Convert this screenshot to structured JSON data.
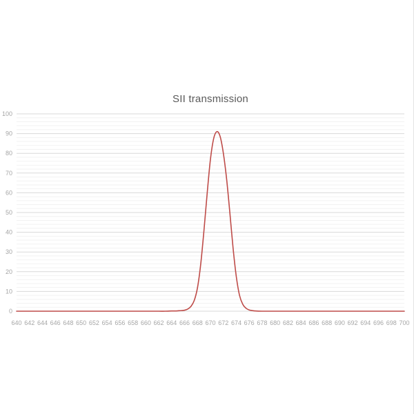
{
  "chart_data": {
    "type": "line",
    "title": "SII transmission",
    "xlabel": "",
    "ylabel": "",
    "legend": "none",
    "grid": "on",
    "xlim": [
      640,
      700
    ],
    "ylim": [
      0,
      100
    ],
    "x_tick_step": 2,
    "y_major_step": 10,
    "y_minor_step": 2,
    "colors": {
      "line": "#be4b48",
      "major_grid": "#d9d9d9",
      "minor_grid": "#f2f2f2",
      "tick_label": "#a6a6a6",
      "title": "#595959",
      "background": "#ffffff"
    },
    "series": [
      {
        "name": "SII transmission",
        "points": [
          [
            640,
            0
          ],
          [
            642,
            0
          ],
          [
            644,
            0
          ],
          [
            646,
            0
          ],
          [
            648,
            0
          ],
          [
            650,
            0
          ],
          [
            652,
            0
          ],
          [
            654,
            0
          ],
          [
            656,
            0
          ],
          [
            658,
            0
          ],
          [
            660,
            0
          ],
          [
            662,
            0
          ],
          [
            663,
            0
          ],
          [
            664,
            0.1
          ],
          [
            664.5,
            0.1
          ],
          [
            665,
            0.2
          ],
          [
            665.5,
            0.3
          ],
          [
            666,
            0.5
          ],
          [
            666.5,
            1.1
          ],
          [
            667,
            2.5
          ],
          [
            667.5,
            5.5
          ],
          [
            668,
            12
          ],
          [
            668.5,
            24
          ],
          [
            669,
            41
          ],
          [
            669.5,
            60
          ],
          [
            670,
            77
          ],
          [
            670.5,
            87.5
          ],
          [
            671,
            91
          ],
          [
            671.5,
            88.5
          ],
          [
            672,
            80
          ],
          [
            672.5,
            67
          ],
          [
            673,
            50
          ],
          [
            673.5,
            32
          ],
          [
            674,
            17.5
          ],
          [
            674.5,
            8
          ],
          [
            675,
            3.5
          ],
          [
            675.5,
            1.5
          ],
          [
            676,
            0.6
          ],
          [
            676.5,
            0.3
          ],
          [
            677,
            0.1
          ],
          [
            678,
            0
          ],
          [
            680,
            0
          ],
          [
            682,
            0
          ],
          [
            684,
            0
          ],
          [
            686,
            0
          ],
          [
            688,
            0
          ],
          [
            690,
            0
          ],
          [
            692,
            0
          ],
          [
            694,
            0
          ],
          [
            696,
            0
          ],
          [
            698,
            0
          ],
          [
            700,
            0
          ]
        ]
      }
    ]
  }
}
